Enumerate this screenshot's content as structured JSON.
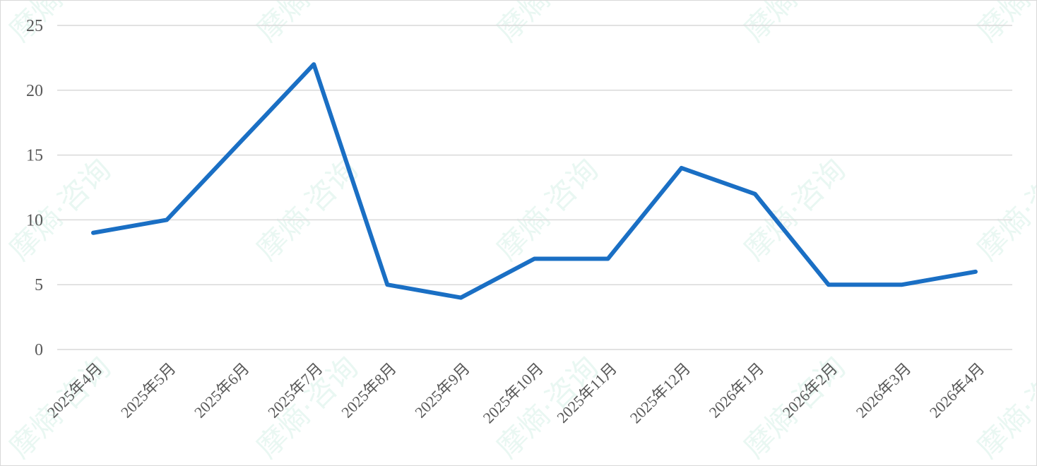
{
  "chart_data": {
    "type": "line",
    "title": "",
    "xlabel": "",
    "ylabel": "",
    "categories": [
      "2025年4月",
      "2025年5月",
      "2025年6月",
      "2025年7月",
      "2025年8月",
      "2025年9月",
      "2025年10月",
      "2025年11月",
      "2025年12月",
      "2026年1月",
      "2026年2月",
      "2026年3月",
      "2026年4月"
    ],
    "series": [
      {
        "values": [
          9,
          10,
          16,
          22,
          5,
          4,
          7,
          7,
          14,
          12,
          5,
          5,
          6
        ],
        "color": "#1a6fc4"
      }
    ],
    "ylim": [
      0,
      25
    ],
    "yticks": [
      "0",
      "5",
      "10",
      "15",
      "20",
      "25"
    ],
    "grid": true,
    "legend": "none"
  },
  "watermark": {
    "text": "摩熵·咨询"
  }
}
